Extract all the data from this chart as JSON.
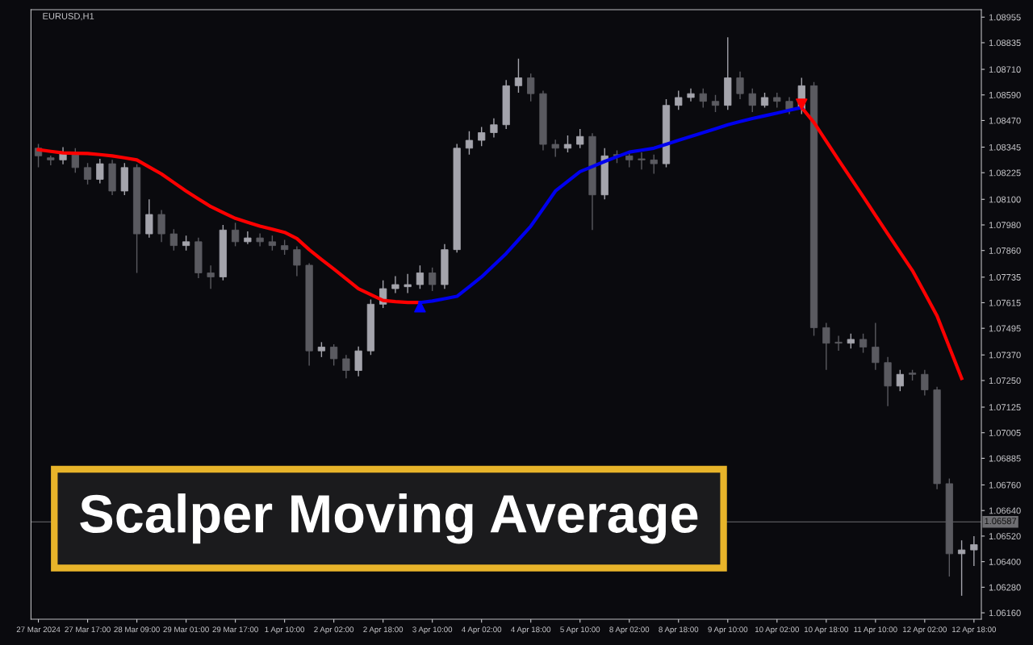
{
  "chart_data": {
    "type": "candlestick",
    "title": "Scalper Moving Average",
    "annotations": [
      "EURUSD,H1"
    ],
    "colors": [
      "#5a5a60",
      "#5a5a60",
      "#a4a4ac",
      "#5a5a60",
      "#5a5a60",
      "#a4a4ac",
      "#5a5a60",
      "#a4a4ac",
      "#5a5a60",
      "#a4a4ac",
      "#5a5a60",
      "#5a5a60",
      "#a4a4ac",
      "#5a5a60",
      "#5a5a60",
      "#a4a4ac",
      "#5a5a60",
      "#a4a4ac",
      "#5a5a60",
      "#5a5a60",
      "#5a5a60",
      "#5a5a60",
      "#5a5a60",
      "#a4a4ac",
      "#5a5a60",
      "#5a5a60",
      "#a4a4ac",
      "#a4a4ac",
      "#a4a4ac",
      "#a4a4ac",
      "#a4a4ac",
      "#a4a4ac",
      "#5a5a60",
      "#a4a4ac",
      "#a4a4ac",
      "#a4a4ac",
      "#a4a4ac",
      "#a4a4ac",
      "#a4a4ac",
      "#a4a4ac",
      "#5a5a60",
      "#5a5a60",
      "#5a5a60",
      "#a4a4ac",
      "#a4a4ac",
      "#5a5a60",
      "#a4a4ac",
      "#5a5a60",
      "#5a5a60",
      "#5a5a60",
      "#5a5a60",
      "#a4a4ac",
      "#a4a4ac",
      "#a4a4ac",
      "#5a5a60",
      "#5a5a60",
      "#a4a4ac",
      "#5a5a60",
      "#5a5a60",
      "#a4a4ac",
      "#5a5a60",
      "#5a5a60",
      "#a4a4ac",
      "#5a5a60",
      "#5a5a60",
      "#5a5a60",
      "#a4a4ac",
      "#5a5a60",
      "#5a5a60",
      "#5a5a60",
      "#a4a4ac",
      "#5a5a60",
      "#5a5a60",
      "#5a5a60",
      "#5a5a60",
      "#a4a4ac",
      "#a4a4ac"
    ],
    "categories": [
      "27 Mar 2024",
      null,
      null,
      null,
      "27 Mar 17:00",
      null,
      null,
      null,
      "28 Mar 09:00",
      null,
      null,
      null,
      "29 Mar 01:00",
      null,
      null,
      null,
      "29 Mar 17:00",
      null,
      null,
      null,
      "1 Apr 10:00",
      null,
      null,
      null,
      "2 Apr 02:00",
      null,
      null,
      null,
      "2 Apr 18:00",
      null,
      null,
      null,
      "3 Apr 10:00",
      null,
      null,
      null,
      "4 Apr 02:00",
      null,
      null,
      null,
      "4 Apr 18:00",
      null,
      null,
      null,
      "5 Apr 10:00",
      null,
      null,
      null,
      "8 Apr 02:00",
      null,
      null,
      null,
      "8 Apr 18:00",
      null,
      null,
      null,
      "9 Apr 10:00",
      null,
      null,
      null,
      "10 Apr 02:00",
      null,
      null,
      null,
      "10 Apr 18:00",
      null,
      null,
      null,
      "11 Apr 10:00",
      null,
      null,
      null,
      "12 Apr 02:00",
      null,
      null,
      null,
      "12 Apr 18:00"
    ],
    "ohlc": [
      [
        1.0834,
        1.0836,
        1.0825,
        1.08304
      ],
      [
        1.08295,
        1.08305,
        1.0826,
        1.08285
      ],
      [
        1.08285,
        1.08345,
        1.08265,
        1.08322
      ],
      [
        1.08322,
        1.0834,
        1.08225,
        1.08249
      ],
      [
        1.08249,
        1.0827,
        1.0817,
        1.08194
      ],
      [
        1.08194,
        1.0829,
        1.08175,
        1.08267
      ],
      [
        1.08267,
        1.08285,
        1.0812,
        1.08139
      ],
      [
        1.08139,
        1.0827,
        1.0812,
        1.08249
      ],
      [
        1.08249,
        1.08265,
        1.07755,
        1.07938
      ],
      [
        1.07938,
        1.081,
        1.0792,
        1.08029
      ],
      [
        1.08029,
        1.0805,
        1.079,
        1.07938
      ],
      [
        1.07938,
        1.0796,
        1.0786,
        1.07883
      ],
      [
        1.07883,
        1.0793,
        1.0786,
        1.07901
      ],
      [
        1.07901,
        1.0792,
        1.0773,
        1.07755
      ],
      [
        1.07755,
        1.0779,
        1.0768,
        1.07736
      ],
      [
        1.07736,
        1.0798,
        1.0772,
        1.07956
      ],
      [
        1.07956,
        1.0799,
        1.0788,
        1.07901
      ],
      [
        1.07901,
        1.0795,
        1.0789,
        1.07919
      ],
      [
        1.07919,
        1.0794,
        1.0788,
        1.07901
      ],
      [
        1.07901,
        1.0793,
        1.0786,
        1.07883
      ],
      [
        1.07883,
        1.0791,
        1.0784,
        1.07864
      ],
      [
        1.07864,
        1.0788,
        1.0774,
        1.07791
      ],
      [
        1.07791,
        1.078,
        1.0732,
        1.07389
      ],
      [
        1.07389,
        1.0743,
        1.0736,
        1.07407
      ],
      [
        1.07407,
        1.0742,
        1.0732,
        1.07352
      ],
      [
        1.07352,
        1.0737,
        1.0726,
        1.07297
      ],
      [
        1.07297,
        1.0741,
        1.0727,
        1.07389
      ],
      [
        1.07389,
        1.0763,
        1.0737,
        1.07608
      ],
      [
        1.07608,
        1.0772,
        1.0759,
        1.07681
      ],
      [
        1.07681,
        1.0774,
        1.0766,
        1.077
      ],
      [
        1.0769,
        1.0775,
        1.0766,
        1.077
      ],
      [
        1.077,
        1.0779,
        1.0768,
        1.07755
      ],
      [
        1.07755,
        1.0778,
        1.0767,
        1.077
      ],
      [
        1.077,
        1.0789,
        1.0768,
        1.07864
      ],
      [
        1.07864,
        1.0836,
        1.0785,
        1.0834
      ],
      [
        1.0834,
        1.0842,
        1.0831,
        1.08377
      ],
      [
        1.08377,
        1.0844,
        1.0835,
        1.08413
      ],
      [
        1.08413,
        1.0848,
        1.0839,
        1.0845
      ],
      [
        1.0845,
        1.0866,
        1.0843,
        1.08633
      ],
      [
        1.08633,
        1.0876,
        1.086,
        1.0867
      ],
      [
        1.0867,
        1.0869,
        1.0856,
        1.08596
      ],
      [
        1.08596,
        1.0861,
        1.0833,
        1.08358
      ],
      [
        1.08358,
        1.0838,
        1.083,
        1.0834
      ],
      [
        1.0834,
        1.084,
        1.0832,
        1.08358
      ],
      [
        1.08358,
        1.0843,
        1.0834,
        1.08395
      ],
      [
        1.08395,
        1.0841,
        1.07956,
        1.08121
      ],
      [
        1.08121,
        1.0834,
        1.081,
        1.08304
      ],
      [
        1.0831,
        1.0833,
        1.0827,
        1.08304
      ],
      [
        1.08304,
        1.0832,
        1.0825,
        1.08285
      ],
      [
        1.0829,
        1.0832,
        1.0824,
        1.08285
      ],
      [
        1.08285,
        1.0831,
        1.0822,
        1.08267
      ],
      [
        1.08267,
        1.0857,
        1.0825,
        1.08541
      ],
      [
        1.08541,
        1.0861,
        1.0852,
        1.08578
      ],
      [
        1.08578,
        1.0862,
        1.0856,
        1.08596
      ],
      [
        1.08596,
        1.0862,
        1.0853,
        1.0856
      ],
      [
        1.0856,
        1.0859,
        1.0851,
        1.08541
      ],
      [
        1.08541,
        1.0886,
        1.0852,
        1.0867
      ],
      [
        1.0867,
        1.087,
        1.0857,
        1.08596
      ],
      [
        1.08596,
        1.0862,
        1.0851,
        1.08541
      ],
      [
        1.08541,
        1.086,
        1.0853,
        1.08578
      ],
      [
        1.08578,
        1.086,
        1.0853,
        1.0856
      ],
      [
        1.0856,
        1.0858,
        1.085,
        1.08523
      ],
      [
        1.08523,
        1.0867,
        1.085,
        1.08633
      ],
      [
        1.08633,
        1.0865,
        1.0746,
        1.07498
      ],
      [
        1.07498,
        1.0752,
        1.073,
        1.07425
      ],
      [
        1.0743,
        1.0746,
        1.0739,
        1.07425
      ],
      [
        1.07425,
        1.0747,
        1.074,
        1.07443
      ],
      [
        1.07443,
        1.0747,
        1.0738,
        1.07407
      ],
      [
        1.07407,
        1.0752,
        1.073,
        1.07334
      ],
      [
        1.07334,
        1.0736,
        1.0713,
        1.07224
      ],
      [
        1.07224,
        1.073,
        1.072,
        1.07279
      ],
      [
        1.07285,
        1.073,
        1.0725,
        1.07279
      ],
      [
        1.07279,
        1.073,
        1.0718,
        1.07206
      ],
      [
        1.07206,
        1.0722,
        1.0674,
        1.06766
      ],
      [
        1.06766,
        1.0679,
        1.0633,
        1.06437
      ],
      [
        1.06437,
        1.065,
        1.0624,
        1.06455
      ],
      [
        1.06455,
        1.0652,
        1.0638,
        1.0648
      ]
    ],
    "series": [
      {
        "type": "line",
        "color": "#ff0000",
        "values": [
          1.08333,
          1.08325,
          1.08318,
          1.08316,
          1.08315,
          1.0831,
          1.08304,
          1.08295,
          1.08285,
          1.08252,
          1.08219,
          1.08179,
          1.08139,
          1.08102,
          1.08066,
          1.08038,
          1.08011,
          1.07992,
          1.07974,
          1.0796,
          1.07945,
          1.07916,
          1.07864,
          1.07818,
          1.07773,
          1.07727,
          1.07681,
          1.07653,
          1.07626,
          1.0762,
          1.07616,
          1.07616,
          null,
          null,
          null,
          null,
          null,
          null,
          null,
          null,
          null,
          null,
          null,
          null,
          null,
          null,
          null,
          null,
          null,
          null,
          null,
          null,
          null,
          null,
          null,
          null,
          null,
          null,
          null,
          null,
          null,
          null,
          1.08531,
          1.08461,
          1.08373,
          1.08285,
          1.08199,
          1.08113,
          1.08025,
          1.07938,
          1.07852,
          1.07766,
          1.0766,
          1.07553,
          1.07407,
          1.0726,
          null
        ]
      },
      {
        "type": "line",
        "color": "#0000ee",
        "values": [
          null,
          null,
          null,
          null,
          null,
          null,
          null,
          null,
          null,
          null,
          null,
          null,
          null,
          null,
          null,
          null,
          null,
          null,
          null,
          null,
          null,
          null,
          null,
          null,
          null,
          null,
          null,
          null,
          null,
          null,
          null,
          1.07616,
          1.07623,
          1.07634,
          1.07645,
          1.0769,
          1.07736,
          1.07791,
          1.07846,
          1.0791,
          1.07974,
          1.08056,
          1.08139,
          1.08185,
          1.0823,
          1.08254,
          1.08278,
          1.083,
          1.08322,
          1.08331,
          1.0834,
          1.08358,
          1.08377,
          1.08395,
          1.08413,
          1.08431,
          1.0845,
          1.08465,
          1.08479,
          1.08492,
          1.08505,
          1.08518,
          1.08531,
          null,
          null,
          null,
          null,
          null,
          null,
          null,
          null,
          null,
          null,
          null,
          null,
          null,
          null
        ]
      },
      {
        "type": "scatter",
        "color": "#0000ff",
        "marker": "triangle",
        "values": [
          null,
          null,
          null,
          null,
          null,
          null,
          null,
          null,
          null,
          null,
          null,
          null,
          null,
          null,
          null,
          null,
          null,
          null,
          null,
          null,
          null,
          null,
          null,
          null,
          null,
          null,
          null,
          null,
          null,
          null,
          null,
          1.07597,
          null,
          null,
          null,
          null,
          null,
          null,
          null,
          null,
          null,
          null,
          null,
          null,
          null,
          null,
          null,
          null,
          null,
          null,
          null,
          null,
          null,
          null,
          null,
          null,
          null,
          null,
          null,
          null,
          null,
          null,
          null,
          null,
          null,
          null,
          null,
          null,
          null,
          null,
          null,
          null,
          null,
          null,
          null,
          null,
          null
        ]
      },
      {
        "type": "scatter",
        "color": "#ff0000",
        "marker": "triangle_down",
        "values": [
          null,
          null,
          null,
          null,
          null,
          null,
          null,
          null,
          null,
          null,
          null,
          null,
          null,
          null,
          null,
          null,
          null,
          null,
          null,
          null,
          null,
          null,
          null,
          null,
          null,
          null,
          null,
          null,
          null,
          null,
          null,
          null,
          null,
          null,
          null,
          null,
          null,
          null,
          null,
          null,
          null,
          null,
          null,
          null,
          null,
          null,
          null,
          null,
          null,
          null,
          null,
          null,
          null,
          null,
          null,
          null,
          null,
          null,
          null,
          null,
          null,
          null,
          1.08545,
          null,
          null,
          null,
          null,
          null,
          null,
          null,
          null,
          null,
          null,
          null,
          null,
          null,
          null
        ]
      }
    ],
    "ref_lines": [
      {
        "axis": "y",
        "value": 1.06587,
        "label": "1.06587",
        "color": "#6e6e72"
      }
    ],
    "ylim": [
      1.0613,
      1.0899
    ],
    "yticks": [
      {
        "value": 1.0616,
        "label": "1.06160"
      },
      {
        "value": 1.0628,
        "label": "1.06280"
      },
      {
        "value": 1.064,
        "label": "1.06400"
      },
      {
        "value": 1.0652,
        "label": "1.06520"
      },
      {
        "value": 1.0664,
        "label": "1.06640"
      },
      {
        "value": 1.0676,
        "label": "1.06760"
      },
      {
        "value": 1.06885,
        "label": "1.06885"
      },
      {
        "value": 1.07005,
        "label": "1.07005"
      },
      {
        "value": 1.07125,
        "label": "1.07125"
      },
      {
        "value": 1.0725,
        "label": "1.07250"
      },
      {
        "value": 1.0737,
        "label": "1.07370"
      },
      {
        "value": 1.07495,
        "label": "1.07495"
      },
      {
        "value": 1.07615,
        "label": "1.07615"
      },
      {
        "value": 1.07735,
        "label": "1.07735"
      },
      {
        "value": 1.0786,
        "label": "1.07860"
      },
      {
        "value": 1.0798,
        "label": "1.07980"
      },
      {
        "value": 1.081,
        "label": "1.08100"
      },
      {
        "value": 1.08225,
        "label": "1.08225"
      },
      {
        "value": 1.08345,
        "label": "1.08345"
      },
      {
        "value": 1.0847,
        "label": "1.08470"
      },
      {
        "value": 1.0859,
        "label": "1.08590"
      },
      {
        "value": 1.0871,
        "label": "1.08710"
      },
      {
        "value": 1.08835,
        "label": "1.08835"
      },
      {
        "value": 1.08955,
        "label": "1.08955"
      }
    ]
  }
}
